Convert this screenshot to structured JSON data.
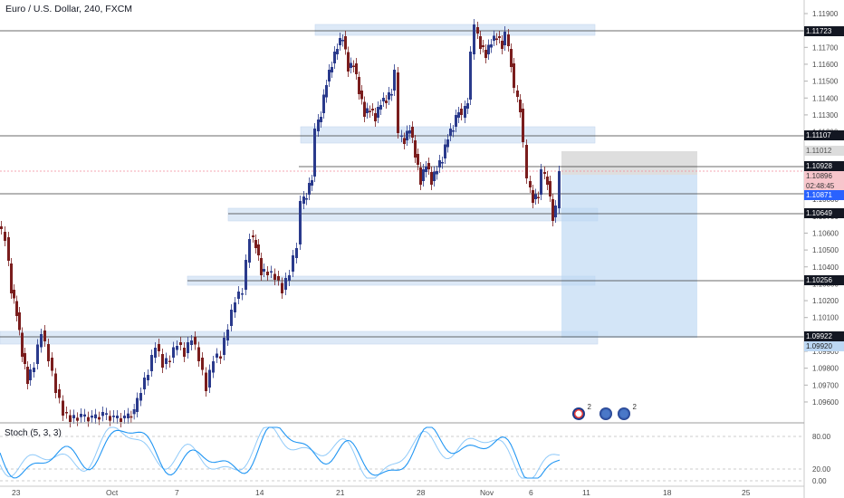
{
  "header": {
    "title": "Euro / U.S. Dollar, 240, FXCM"
  },
  "stochastic": {
    "title": "Stoch (5, 3, 3)",
    "levels": [
      "80.00",
      "20.00",
      "0.00"
    ]
  },
  "price_axis": {
    "ticks": [
      "1.11900",
      "1.11800",
      "1.11700",
      "1.11600",
      "1.11500",
      "1.11400",
      "1.11300",
      "1.11200",
      "1.11100",
      "1.11000",
      "1.10900",
      "1.10800",
      "1.10700",
      "1.10600",
      "1.10500",
      "1.10400",
      "1.10300",
      "1.10200",
      "1.10100",
      "1.10000",
      "1.09900",
      "1.09800",
      "1.09700",
      "1.09600",
      "1.09500"
    ]
  },
  "price_labels": [
    {
      "id": "l1",
      "text": "1.11723",
      "style": "dark"
    },
    {
      "id": "l2",
      "text": "1.11107",
      "style": "dark"
    },
    {
      "id": "l3",
      "text": "1.11012",
      "style": "grey"
    },
    {
      "id": "l4",
      "text": "1.10928",
      "style": "dark"
    },
    {
      "id": "l5",
      "text": "1.10896",
      "style": "pink"
    },
    {
      "id": "l6",
      "text": "02:48:45",
      "style": "pink"
    },
    {
      "id": "l7",
      "text": "1.10871",
      "style": "blue"
    },
    {
      "id": "l8",
      "text": "1.10649",
      "style": "dark"
    },
    {
      "id": "l9",
      "text": "1.10256",
      "style": "dark"
    },
    {
      "id": "l10",
      "text": "1.09922",
      "style": "dark"
    },
    {
      "id": "l11",
      "text": "1.09920",
      "style": "lblue"
    }
  ],
  "time_axis": {
    "ticks": [
      "23",
      "Oct",
      "7",
      "14",
      "21",
      "28",
      "Nov",
      "6",
      "11",
      "18",
      "25"
    ]
  },
  "colors": {
    "up": "#2a3a8c",
    "down": "#7a1d1d",
    "zone": "#dde9f7",
    "target": "#bcd7f3",
    "stop": "#d8d8d8",
    "stoch_k": "#2196f3",
    "stoch_d": "#90caf9"
  },
  "toolbar_icons": [
    "flag-icon",
    "globe-icon",
    "globe-icon"
  ],
  "icon_badges": [
    "2",
    "2"
  ]
}
